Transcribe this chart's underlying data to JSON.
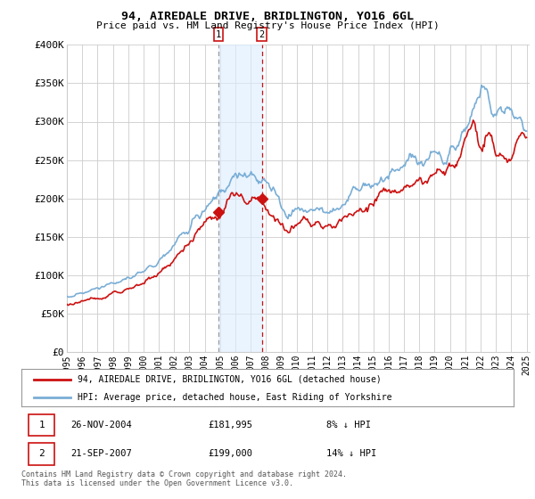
{
  "title": "94, AIREDALE DRIVE, BRIDLINGTON, YO16 6GL",
  "subtitle": "Price paid vs. HM Land Registry's House Price Index (HPI)",
  "ylabel_ticks": [
    "£0",
    "£50K",
    "£100K",
    "£150K",
    "£200K",
    "£250K",
    "£300K",
    "£350K",
    "£400K"
  ],
  "ytick_values": [
    0,
    50000,
    100000,
    150000,
    200000,
    250000,
    300000,
    350000,
    400000
  ],
  "ylim": [
    0,
    400000
  ],
  "xlim_left": 1995.0,
  "xlim_right": 2025.2,
  "hpi_color": "#7aaed6",
  "price_color": "#cc1111",
  "shade_color": "#ddeeff",
  "shade_alpha": 0.6,
  "vline1_color": "#999999",
  "vline2_color": "#cc1111",
  "grid_color": "#cccccc",
  "background_color": "#ffffff",
  "sale1_date": "26-NOV-2004",
  "sale1_price": 181995,
  "sale1_pct": "8% ↓ HPI",
  "sale2_date": "21-SEP-2007",
  "sale2_price": 199000,
  "sale2_pct": "14% ↓ HPI",
  "legend_line1": "94, AIREDALE DRIVE, BRIDLINGTON, YO16 6GL (detached house)",
  "legend_line2": "HPI: Average price, detached house, East Riding of Yorkshire",
  "footnote": "Contains HM Land Registry data © Crown copyright and database right 2024.\nThis data is licensed under the Open Government Licence v3.0.",
  "sale1_x": 2004.9,
  "sale2_x": 2007.72
}
